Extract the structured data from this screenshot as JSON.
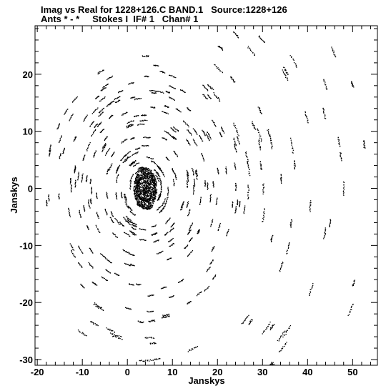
{
  "header": {
    "line1": "Imag vs Real for 1228+126.C BAND.1   Source:1228+126",
    "line2": "Ants * - *     Stokes I  IF# 1   Chan# 1"
  },
  "chart_data": {
    "type": "scatter",
    "title": "Imag vs Real for 1228+126.C BAND.1   Source:1228+126",
    "subtitle": "Ants * - *     Stokes I  IF# 1   Chan# 1",
    "xlabel": "Janskys",
    "ylabel": "Janskys",
    "xlim": [
      -20.5,
      55.5
    ],
    "ylim": [
      -31,
      28.5
    ],
    "x_ticks": [
      -20,
      -10,
      0,
      10,
      20,
      30,
      40,
      50
    ],
    "y_ticks": [
      -30,
      -20,
      -10,
      0,
      10,
      20
    ],
    "x_tick_labels": [
      "-20",
      "-10",
      "0",
      "10",
      "20",
      "30",
      "40",
      "50"
    ],
    "y_tick_labels": [
      "-30",
      "-20",
      "-10",
      "0",
      "10",
      "20"
    ],
    "grid": false,
    "legend": "none",
    "marker_color": "#000000",
    "background_color": "#ffffff",
    "rings": {
      "description": "concentric ring structure of visibility points centred near the core",
      "center": [
        4,
        0
      ],
      "radii": [
        2,
        3.5,
        5,
        7,
        9,
        11.5,
        14,
        17,
        20.5
      ]
    },
    "outer_arcs": [
      {
        "center": [
          4,
          0
        ],
        "radius": 23
      },
      {
        "center": [
          4,
          0
        ],
        "radius": 26.5
      },
      {
        "center": [
          4,
          0
        ],
        "radius": 29.5
      },
      {
        "center": [
          4,
          0
        ],
        "radius": 33
      },
      {
        "center": [
          4,
          0
        ],
        "radius": 37
      },
      {
        "center": [
          4,
          0
        ],
        "radius": 41
      },
      {
        "center": [
          4,
          0
        ],
        "radius": 45
      },
      {
        "center": [
          4,
          0
        ],
        "radius": 49
      }
    ]
  }
}
